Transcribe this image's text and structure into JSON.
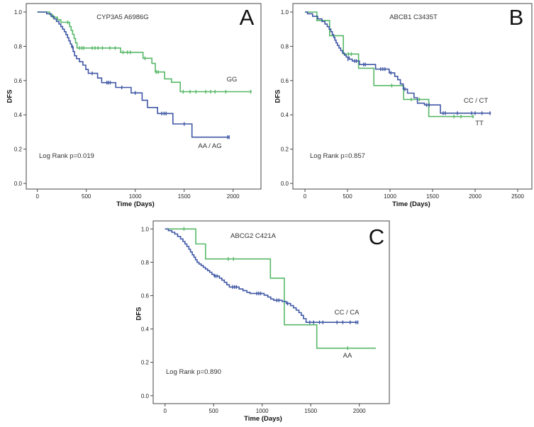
{
  "colors": {
    "green": "#58b868",
    "blue": "#3f57a5",
    "frame": "#454545",
    "axis": "#454545",
    "label_text": "#333333"
  },
  "chart_data": [
    {
      "id": "A",
      "type": "line",
      "panel_label": "A",
      "title": "CYP3A5 A6986G",
      "xlabel": "Time (Days)",
      "ylabel": "DFS",
      "log_rank": "Log Rank p=0.019",
      "xticks": [
        0,
        500,
        1000,
        1500,
        2000
      ],
      "yticks": [
        "1.0",
        "0.8",
        "0.6",
        "0.4",
        "0.2",
        "0.0"
      ],
      "xlim": [
        -110,
        2290
      ],
      "ylim": [
        0,
        1.04
      ],
      "grid": false,
      "series": [
        {
          "name": "GG",
          "color": "green",
          "points": [
            [
              0,
              1.0
            ],
            [
              125,
              0.985
            ],
            [
              155,
              0.97
            ],
            [
              205,
              0.955
            ],
            [
              240,
              0.94
            ],
            [
              330,
              0.915
            ],
            [
              345,
              0.893
            ],
            [
              360,
              0.87
            ],
            [
              375,
              0.845
            ],
            [
              390,
              0.82
            ],
            [
              405,
              0.79
            ],
            [
              850,
              0.765
            ],
            [
              1080,
              0.73
            ],
            [
              1170,
              0.7
            ],
            [
              1205,
              0.65
            ],
            [
              1300,
              0.61
            ],
            [
              1370,
              0.59
            ],
            [
              1460,
              0.535
            ],
            [
              2190,
              0.535
            ]
          ],
          "censors": [
            [
              165,
              0.97
            ],
            [
              310,
              0.94
            ],
            [
              430,
              0.79
            ],
            [
              455,
              0.79
            ],
            [
              475,
              0.79
            ],
            [
              560,
              0.79
            ],
            [
              590,
              0.79
            ],
            [
              620,
              0.79
            ],
            [
              665,
              0.79
            ],
            [
              740,
              0.79
            ],
            [
              795,
              0.79
            ],
            [
              875,
              0.765
            ],
            [
              920,
              0.765
            ],
            [
              950,
              0.765
            ],
            [
              1100,
              0.73
            ],
            [
              1215,
              0.65
            ],
            [
              1235,
              0.65
            ],
            [
              1490,
              0.535
            ],
            [
              1560,
              0.535
            ],
            [
              1620,
              0.535
            ],
            [
              1720,
              0.535
            ],
            [
              1770,
              0.535
            ],
            [
              1815,
              0.535
            ],
            [
              1925,
              0.535
            ],
            [
              2180,
              0.535
            ]
          ]
        },
        {
          "name": "AA / AG",
          "color": "blue",
          "points": [
            [
              0,
              1.0
            ],
            [
              95,
              0.99
            ],
            [
              140,
              0.975
            ],
            [
              170,
              0.96
            ],
            [
              195,
              0.945
            ],
            [
              220,
              0.93
            ],
            [
              240,
              0.915
            ],
            [
              258,
              0.9
            ],
            [
              275,
              0.885
            ],
            [
              292,
              0.868
            ],
            [
              308,
              0.85
            ],
            [
              322,
              0.832
            ],
            [
              336,
              0.814
            ],
            [
              350,
              0.795
            ],
            [
              365,
              0.77
            ],
            [
              380,
              0.745
            ],
            [
              400,
              0.728
            ],
            [
              430,
              0.71
            ],
            [
              465,
              0.69
            ],
            [
              495,
              0.665
            ],
            [
              520,
              0.642
            ],
            [
              615,
              0.615
            ],
            [
              657,
              0.588
            ],
            [
              801,
              0.56
            ],
            [
              958,
              0.528
            ],
            [
              1070,
              0.485
            ],
            [
              1125,
              0.443
            ],
            [
              1228,
              0.408
            ],
            [
              1385,
              0.347
            ],
            [
              1580,
              0.27
            ],
            [
              1962,
              0.27
            ]
          ],
          "censors": [
            [
              360,
              0.795
            ],
            [
              560,
              0.642
            ],
            [
              710,
              0.588
            ],
            [
              725,
              0.588
            ],
            [
              745,
              0.588
            ],
            [
              862,
              0.56
            ],
            [
              1000,
              0.528
            ],
            [
              1270,
              0.408
            ],
            [
              1295,
              0.408
            ],
            [
              1315,
              0.408
            ],
            [
              1500,
              0.347
            ],
            [
              1945,
              0.27
            ],
            [
              1960,
              0.27
            ]
          ]
        }
      ]
    },
    {
      "id": "B",
      "type": "line",
      "panel_label": "B",
      "title": "ABCB1 C3435T",
      "xlabel": "Time (Days)",
      "ylabel": "DFS",
      "log_rank": "Log Rank p=0.857",
      "xticks": [
        0,
        500,
        1000,
        1500,
        2000,
        2500
      ],
      "yticks": [
        "1.0",
        "0.8",
        "0.6",
        "0.4",
        "0.2",
        "0.0"
      ],
      "xlim": [
        -140,
        2660
      ],
      "ylim": [
        0,
        1.04
      ],
      "grid": false,
      "series": [
        {
          "name": "TT",
          "color": "green",
          "points": [
            [
              0,
              1.0
            ],
            [
              140,
              0.95
            ],
            [
              290,
              0.862
            ],
            [
              452,
              0.755
            ],
            [
              630,
              0.672
            ],
            [
              810,
              0.571
            ],
            [
              1160,
              0.49
            ],
            [
              1455,
              0.39
            ],
            [
              1985,
              0.39
            ]
          ],
          "censors": [
            [
              510,
              0.755
            ],
            [
              545,
              0.755
            ],
            [
              1020,
              0.571
            ],
            [
              1250,
              0.49
            ],
            [
              1345,
              0.49
            ],
            [
              1750,
              0.39
            ],
            [
              1833,
              0.39
            ],
            [
              1975,
              0.39
            ]
          ]
        },
        {
          "name": "CC / CT",
          "color": "blue",
          "points": [
            [
              0,
              1.0
            ],
            [
              30,
              0.99
            ],
            [
              90,
              0.975
            ],
            [
              150,
              0.96
            ],
            [
              200,
              0.945
            ],
            [
              235,
              0.93
            ],
            [
              262,
              0.915
            ],
            [
              285,
              0.9
            ],
            [
              305,
              0.885
            ],
            [
              322,
              0.868
            ],
            [
              338,
              0.852
            ],
            [
              352,
              0.836
            ],
            [
              366,
              0.82
            ],
            [
              382,
              0.805
            ],
            [
              400,
              0.79
            ],
            [
              420,
              0.775
            ],
            [
              442,
              0.76
            ],
            [
              465,
              0.748
            ],
            [
              485,
              0.737
            ],
            [
              520,
              0.725
            ],
            [
              556,
              0.714
            ],
            [
              640,
              0.694
            ],
            [
              830,
              0.667
            ],
            [
              990,
              0.645
            ],
            [
              1055,
              0.625
            ],
            [
              1090,
              0.605
            ],
            [
              1122,
              0.58
            ],
            [
              1155,
              0.55
            ],
            [
              1205,
              0.527
            ],
            [
              1282,
              0.5
            ],
            [
              1322,
              0.468
            ],
            [
              1405,
              0.458
            ],
            [
              1592,
              0.41
            ],
            [
              2185,
              0.41
            ]
          ],
          "censors": [
            [
              505,
              0.725
            ],
            [
              585,
              0.714
            ],
            [
              605,
              0.714
            ],
            [
              690,
              0.694
            ],
            [
              710,
              0.694
            ],
            [
              890,
              0.667
            ],
            [
              915,
              0.667
            ],
            [
              940,
              0.667
            ],
            [
              1010,
              0.645
            ],
            [
              1175,
              0.55
            ],
            [
              1430,
              0.458
            ],
            [
              1460,
              0.458
            ],
            [
              1625,
              0.41
            ],
            [
              1650,
              0.41
            ],
            [
              1792,
              0.41
            ],
            [
              1958,
              0.41
            ],
            [
              2000,
              0.41
            ],
            [
              2080,
              0.41
            ],
            [
              2175,
              0.41
            ]
          ]
        }
      ]
    },
    {
      "id": "C",
      "type": "line",
      "panel_label": "C",
      "title": "ABCG2 C421A",
      "xlabel": "Time (Days)",
      "ylabel": "DFS",
      "log_rank": "Log Rank p=0.890",
      "xticks": [
        0,
        500,
        1000,
        1500,
        2000
      ],
      "yticks": [
        "1.0",
        "0.8",
        "0.6",
        "0.4",
        "0.2",
        "0.0"
      ],
      "xlim": [
        -120,
        2310
      ],
      "ylim": [
        0,
        1.04
      ],
      "grid": false,
      "series": [
        {
          "name": "AA",
          "color": "green",
          "points": [
            [
              0,
              1.0
            ],
            [
              317,
              0.91
            ],
            [
              417,
              0.82
            ],
            [
              1085,
              0.705
            ],
            [
              1228,
              0.425
            ],
            [
              1562,
              0.285
            ],
            [
              2170,
              0.285
            ]
          ],
          "censors": [
            [
              195,
              1.0
            ],
            [
              650,
              0.82
            ],
            [
              705,
              0.82
            ],
            [
              1880,
              0.285
            ]
          ]
        },
        {
          "name": "CC / CA",
          "color": "blue",
          "points": [
            [
              0,
              1.0
            ],
            [
              35,
              0.99
            ],
            [
              70,
              0.98
            ],
            [
              100,
              0.97
            ],
            [
              130,
              0.955
            ],
            [
              160,
              0.94
            ],
            [
              185,
              0.925
            ],
            [
              205,
              0.91
            ],
            [
              225,
              0.895
            ],
            [
              245,
              0.878
            ],
            [
              262,
              0.862
            ],
            [
              280,
              0.845
            ],
            [
              298,
              0.83
            ],
            [
              314,
              0.815
            ],
            [
              330,
              0.8
            ],
            [
              350,
              0.79
            ],
            [
              372,
              0.78
            ],
            [
              394,
              0.77
            ],
            [
              416,
              0.76
            ],
            [
              438,
              0.75
            ],
            [
              460,
              0.74
            ],
            [
              482,
              0.728
            ],
            [
              505,
              0.717
            ],
            [
              560,
              0.705
            ],
            [
              585,
              0.693
            ],
            [
              610,
              0.68
            ],
            [
              636,
              0.665
            ],
            [
              662,
              0.652
            ],
            [
              762,
              0.64
            ],
            [
              802,
              0.63
            ],
            [
              842,
              0.62
            ],
            [
              875,
              0.613
            ],
            [
              1020,
              0.603
            ],
            [
              1058,
              0.592
            ],
            [
              1088,
              0.58
            ],
            [
              1118,
              0.572
            ],
            [
              1205,
              0.565
            ],
            [
              1248,
              0.553
            ],
            [
              1292,
              0.54
            ],
            [
              1322,
              0.527
            ],
            [
              1350,
              0.513
            ],
            [
              1378,
              0.498
            ],
            [
              1402,
              0.482
            ],
            [
              1425,
              0.462
            ],
            [
              1452,
              0.44
            ],
            [
              1985,
              0.44
            ]
          ],
          "censors": [
            [
              515,
              0.717
            ],
            [
              535,
              0.717
            ],
            [
              695,
              0.652
            ],
            [
              715,
              0.652
            ],
            [
              735,
              0.652
            ],
            [
              945,
              0.613
            ],
            [
              965,
              0.613
            ],
            [
              985,
              0.613
            ],
            [
              1150,
              0.572
            ],
            [
              1172,
              0.572
            ],
            [
              1262,
              0.553
            ],
            [
              1490,
              0.44
            ],
            [
              1530,
              0.44
            ],
            [
              1590,
              0.44
            ],
            [
              1625,
              0.44
            ],
            [
              1770,
              0.44
            ],
            [
              1830,
              0.44
            ],
            [
              1905,
              0.44
            ],
            [
              1965,
              0.44
            ],
            [
              1985,
              0.44
            ]
          ]
        }
      ]
    }
  ]
}
